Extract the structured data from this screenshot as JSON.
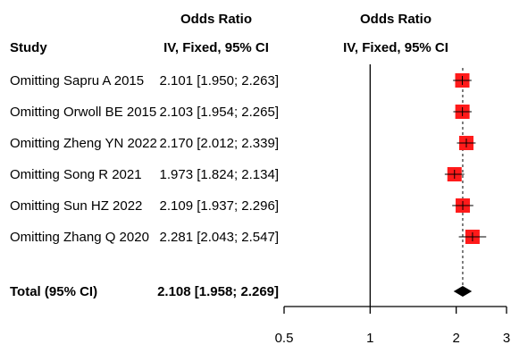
{
  "chart_data": {
    "type": "forest",
    "headers": {
      "study": "Study",
      "effect_title": "Odds Ratio",
      "effect_subtitle": "IV, Fixed, 95% CI",
      "plot_title": "Odds Ratio",
      "plot_subtitle": "IV, Fixed, 95% CI"
    },
    "scale": "log",
    "reference_line": 1,
    "xlim": [
      0.5,
      3
    ],
    "ticks": [
      {
        "value": 0.5,
        "label": "0.5"
      },
      {
        "value": 1,
        "label": "1"
      },
      {
        "value": 2,
        "label": "2"
      },
      {
        "value": 3,
        "label": "3"
      }
    ],
    "studies": [
      {
        "label": "Omitting Sapru A 2015",
        "ci_text": "2.101 [1.950; 2.263]",
        "or": 2.101,
        "lower": 1.95,
        "upper": 2.263
      },
      {
        "label": "Omitting Orwoll BE 2015",
        "ci_text": "2.103 [1.954; 2.265]",
        "or": 2.103,
        "lower": 1.954,
        "upper": 2.265
      },
      {
        "label": "Omitting Zheng YN 2022",
        "ci_text": "2.170 [2.012; 2.339]",
        "or": 2.17,
        "lower": 2.012,
        "upper": 2.339
      },
      {
        "label": "Omitting Song R 2021",
        "ci_text": "1.973 [1.824; 2.134]",
        "or": 1.973,
        "lower": 1.824,
        "upper": 2.134
      },
      {
        "label": "Omitting Sun HZ 2022",
        "ci_text": "2.109 [1.937; 2.296]",
        "or": 2.109,
        "lower": 1.937,
        "upper": 2.296
      },
      {
        "label": "Omitting Zhang Q 2020",
        "ci_text": "2.281 [2.043; 2.547]",
        "or": 2.281,
        "lower": 2.043,
        "upper": 2.547
      }
    ],
    "total": {
      "label": "Total (95% CI)",
      "ci_text": "2.108 [1.958; 2.269]",
      "or": 2.108,
      "lower": 1.958,
      "upper": 2.269
    },
    "colors": {
      "box": "#ff1a1a",
      "line": "#000000",
      "diamond": "#000000"
    }
  }
}
